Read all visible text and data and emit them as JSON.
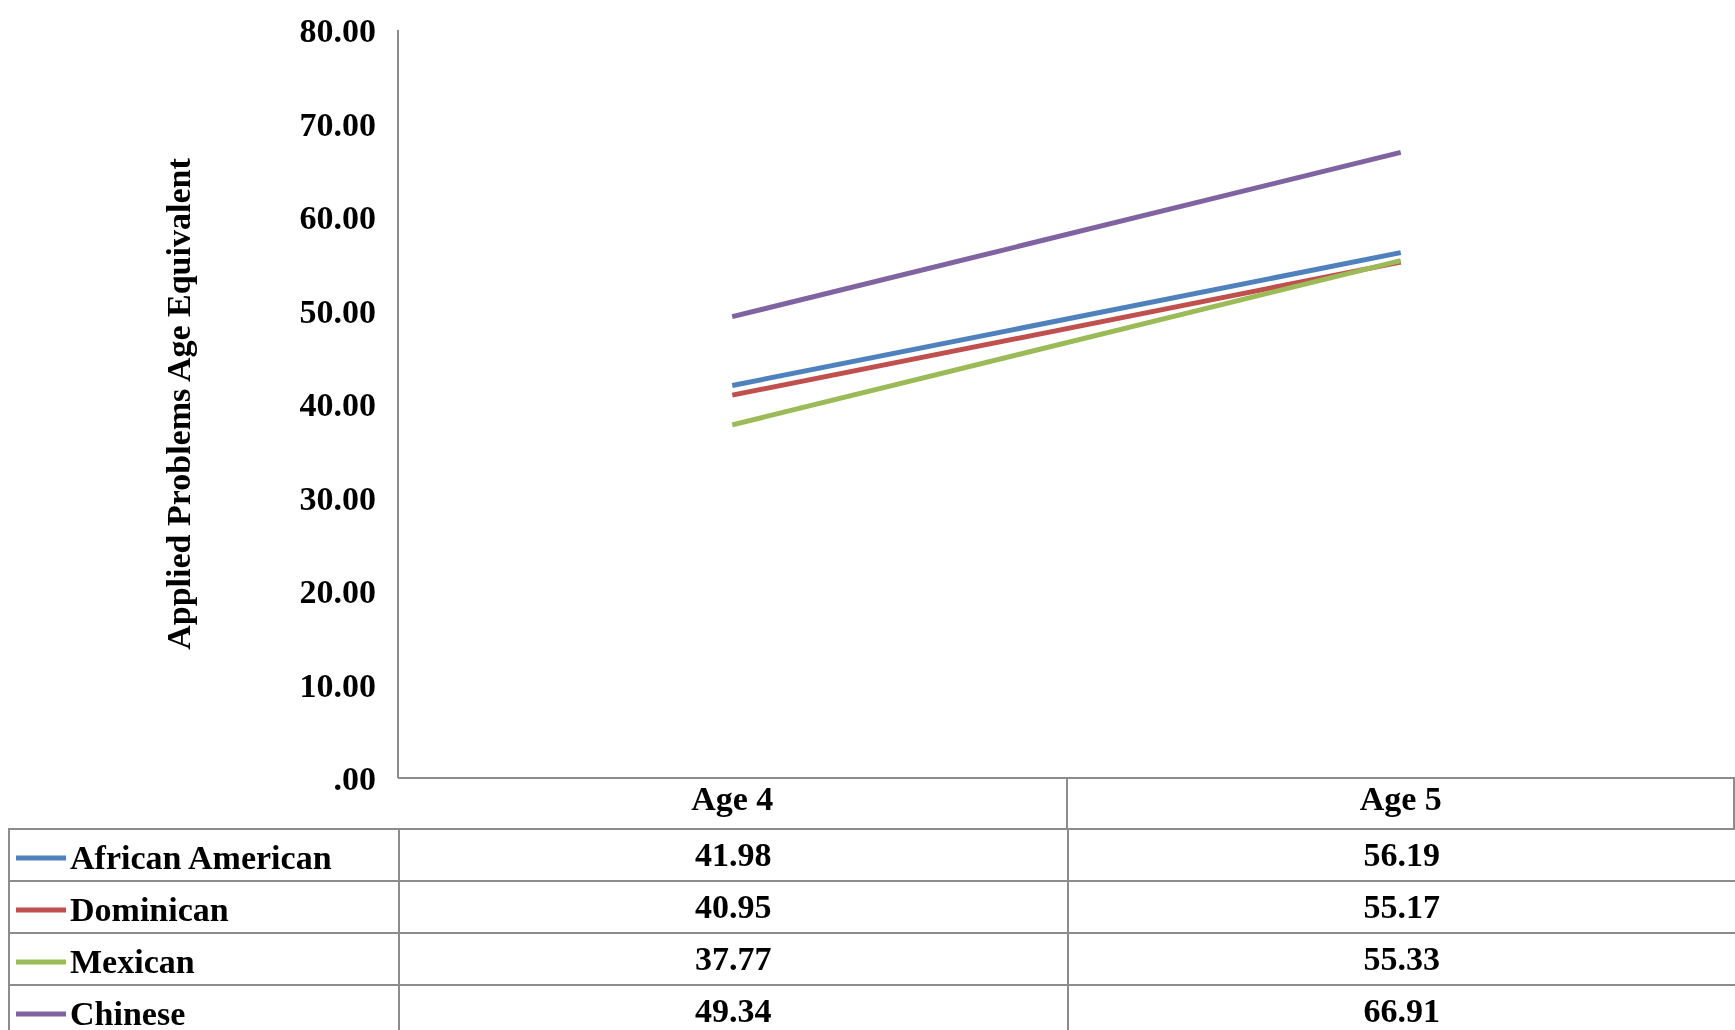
{
  "chart_data": {
    "type": "line",
    "ylabel": "Applied Problems Age Equivalent",
    "categories": [
      "Age 4",
      "Age 5"
    ],
    "series": [
      {
        "name": "African American",
        "color": "#4f81bd",
        "values": [
          41.98,
          56.19
        ]
      },
      {
        "name": "Dominican",
        "color": "#c0504d",
        "values": [
          40.95,
          55.17
        ]
      },
      {
        "name": "Mexican",
        "color": "#9bbb59",
        "values": [
          37.77,
          55.33
        ]
      },
      {
        "name": "Chinese",
        "color": "#8064a2",
        "values": [
          49.34,
          66.91
        ]
      }
    ],
    "ylim": [
      0,
      80
    ],
    "yticks": [
      {
        "value": 0,
        "label": ".00"
      },
      {
        "value": 10,
        "label": "10.00"
      },
      {
        "value": 20,
        "label": "20.00"
      },
      {
        "value": 30,
        "label": "30.00"
      },
      {
        "value": 40,
        "label": "40.00"
      },
      {
        "value": 50,
        "label": "50.00"
      },
      {
        "value": 60,
        "label": "60.00"
      },
      {
        "value": 70,
        "label": "70.00"
      },
      {
        "value": 80,
        "label": "80.00"
      }
    ],
    "data_labels": true,
    "legend": "bottom",
    "grid": false,
    "marker": "none",
    "line_style": "solid"
  }
}
